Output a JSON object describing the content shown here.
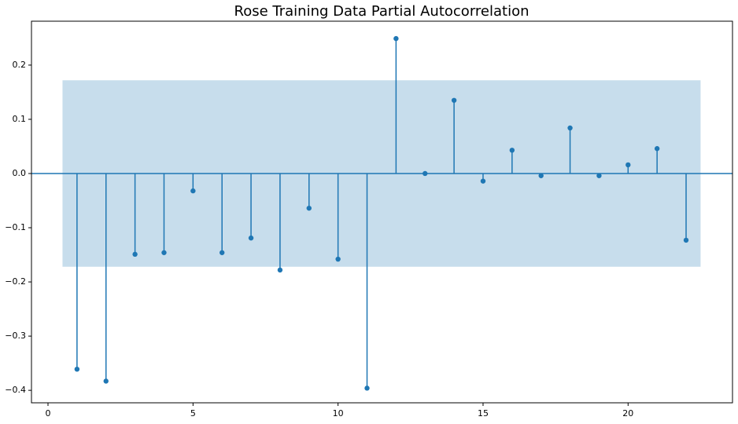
{
  "chart_data": {
    "type": "stem",
    "title": "Rose Training Data Partial Autocorrelation",
    "x": [
      1,
      2,
      3,
      4,
      5,
      6,
      7,
      8,
      9,
      10,
      11,
      12,
      13,
      14,
      15,
      16,
      17,
      18,
      19,
      20,
      21,
      22
    ],
    "values": [
      -0.361,
      -0.383,
      -0.149,
      -0.146,
      -0.032,
      -0.146,
      -0.119,
      -0.178,
      -0.064,
      -0.158,
      -0.396,
      0.249,
      0.0,
      0.135,
      -0.014,
      0.043,
      -0.004,
      0.084,
      -0.004,
      0.016,
      0.046,
      -0.123
    ],
    "color": "#1f77b4",
    "conf_band": {
      "lower": -0.172,
      "upper": 0.172,
      "color": "#1f77b4"
    },
    "xlim": [
      -0.57,
      23.6
    ],
    "ylim": [
      -0.423,
      0.281
    ],
    "xticks": [
      0,
      5,
      10,
      15,
      20
    ],
    "yticks": [
      {
        "value": -0.4,
        "label": "−0.4"
      },
      {
        "value": -0.3,
        "label": "−0.3"
      },
      {
        "value": -0.2,
        "label": "−0.2"
      },
      {
        "value": -0.1,
        "label": "−0.1"
      },
      {
        "value": 0,
        "label": "0.0"
      },
      0.1,
      0.2
    ],
    "grid": false
  }
}
